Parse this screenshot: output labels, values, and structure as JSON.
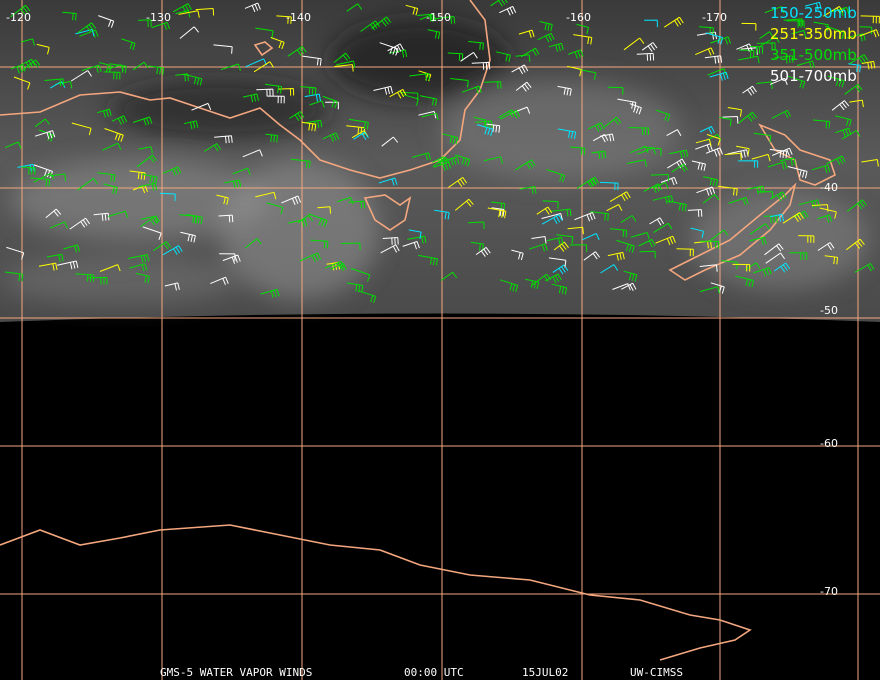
{
  "title_bar": {
    "product": "GMS-5 WATER VAPOR WINDS",
    "time": "00:00 UTC",
    "date": "15JUL02",
    "source": "UW-CIMSS"
  },
  "longitude_labels": [
    "-120",
    "-130",
    "-140",
    "-150",
    "-160",
    "-170"
  ],
  "latitude_labels": [
    "-40",
    "-50",
    "-60",
    "-70"
  ],
  "legend": [
    {
      "label": "150-250mb",
      "color": "#00e5ff"
    },
    {
      "label": "251-350mb",
      "color": "#ffff00"
    },
    {
      "label": "351-500mb",
      "color": "#00e000"
    },
    {
      "label": "501-700mb",
      "color": "#ffffff"
    }
  ]
}
